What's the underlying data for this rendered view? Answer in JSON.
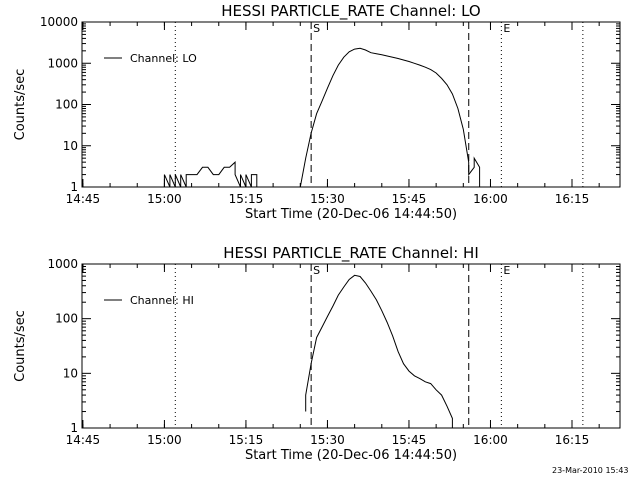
{
  "footer_timestamp": "23-Mar-2010 15:43",
  "chart_data": [
    {
      "type": "line",
      "title": "HESSI PARTICLE_RATE Channel: LO",
      "xlabel": "Start Time (20-Dec-06 14:44:50)",
      "ylabel": "Counts/sec",
      "y_scale": "log",
      "ylim": [
        1,
        10000
      ],
      "y_ticks": [
        "1",
        "10",
        "100",
        "1000",
        "10000"
      ],
      "xlim_minutes_after_start": [
        0,
        99
      ],
      "x_ticks": [
        "14:45",
        "15:00",
        "15:15",
        "15:30",
        "15:45",
        "16:00",
        "16:15"
      ],
      "legend": {
        "placement": "top-left",
        "entries": [
          "Channel: LO"
        ]
      },
      "markers": [
        {
          "label": "S",
          "time": "15:27",
          "style": "dashed"
        },
        {
          "label": "",
          "time": "15:56",
          "style": "dashed"
        },
        {
          "label": "E",
          "time": "16:02",
          "style": "dotted"
        },
        {
          "label": "",
          "time": "15:02",
          "style": "dotted"
        },
        {
          "label": "",
          "time": "16:17",
          "style": "dotted"
        }
      ],
      "series": [
        {
          "name": "Channel: LO",
          "segments": [
            [
              [
                "15:00",
                1
              ],
              [
                "15:00",
                2
              ],
              [
                "15:01",
                1
              ],
              [
                "15:01",
                2
              ],
              [
                "15:02",
                1
              ],
              [
                "15:02",
                2
              ],
              [
                "15:03",
                1
              ],
              [
                "15:03",
                2
              ],
              [
                "15:04",
                1
              ],
              [
                "15:04",
                2
              ],
              [
                "15:05",
                2
              ],
              [
                "15:06",
                2
              ],
              [
                "15:07",
                3
              ],
              [
                "15:08",
                3
              ],
              [
                "15:09",
                2
              ],
              [
                "15:10",
                2
              ],
              [
                "15:11",
                3
              ],
              [
                "15:12",
                3
              ],
              [
                "15:13",
                4
              ],
              [
                "15:13",
                2
              ],
              [
                "15:14",
                1
              ],
              [
                "15:14",
                2
              ],
              [
                "15:15",
                1
              ],
              [
                "15:15",
                2
              ],
              [
                "15:16",
                1
              ],
              [
                "15:16",
                2
              ],
              [
                "15:17",
                2
              ],
              [
                "15:17",
                1
              ]
            ],
            [
              [
                "15:25",
                1
              ],
              [
                "15:26",
                5
              ],
              [
                "15:27",
                20
              ],
              [
                "15:28",
                60
              ],
              [
                "15:29",
                120
              ],
              [
                "15:30",
                250
              ],
              [
                "15:31",
                500
              ],
              [
                "15:32",
                900
              ],
              [
                "15:33",
                1400
              ],
              [
                "15:34",
                1900
              ],
              [
                "15:35",
                2200
              ],
              [
                "15:36",
                2300
              ],
              [
                "15:37",
                2100
              ],
              [
                "15:38",
                1800
              ],
              [
                "15:39",
                1700
              ],
              [
                "15:40",
                1600
              ],
              [
                "15:41",
                1500
              ],
              [
                "15:42",
                1400
              ],
              [
                "15:43",
                1300
              ],
              [
                "15:44",
                1200
              ],
              [
                "15:45",
                1100
              ],
              [
                "15:46",
                1000
              ],
              [
                "15:47",
                900
              ],
              [
                "15:48",
                800
              ],
              [
                "15:49",
                700
              ],
              [
                "15:50",
                580
              ],
              [
                "15:51",
                430
              ],
              [
                "15:52",
                300
              ],
              [
                "15:53",
                180
              ],
              [
                "15:54",
                80
              ],
              [
                "15:55",
                25
              ],
              [
                "15:56",
                4
              ],
              [
                "15:56",
                2
              ],
              [
                "15:57",
                3
              ],
              [
                "15:57",
                5
              ],
              [
                "15:58",
                3
              ],
              [
                "15:58",
                1
              ]
            ]
          ]
        }
      ]
    },
    {
      "type": "line",
      "title": "HESSI PARTICLE_RATE Channel: HI",
      "xlabel": "Start Time (20-Dec-06 14:44:50)",
      "ylabel": "Counts/sec",
      "y_scale": "log",
      "ylim": [
        1,
        1000
      ],
      "y_ticks": [
        "1",
        "10",
        "100",
        "1000"
      ],
      "xlim_minutes_after_start": [
        0,
        99
      ],
      "x_ticks": [
        "14:45",
        "15:00",
        "15:15",
        "15:30",
        "15:45",
        "16:00",
        "16:15"
      ],
      "legend": {
        "placement": "top-left",
        "entries": [
          "Channel: HI"
        ]
      },
      "markers": [
        {
          "label": "S",
          "time": "15:27",
          "style": "dashed"
        },
        {
          "label": "",
          "time": "15:56",
          "style": "dashed"
        },
        {
          "label": "E",
          "time": "16:02",
          "style": "dotted"
        },
        {
          "label": "",
          "time": "15:02",
          "style": "dotted"
        },
        {
          "label": "",
          "time": "16:17",
          "style": "dotted"
        }
      ],
      "series": [
        {
          "name": "Channel: HI",
          "segments": [
            [
              [
                "15:26",
                2
              ],
              [
                "15:26",
                4
              ],
              [
                "15:27",
                15
              ],
              [
                "15:28",
                45
              ],
              [
                "15:29",
                70
              ],
              [
                "15:30",
                110
              ],
              [
                "15:31",
                170
              ],
              [
                "15:32",
                270
              ],
              [
                "15:33",
                380
              ],
              [
                "15:34",
                520
              ],
              [
                "15:35",
                620
              ],
              [
                "15:36",
                590
              ],
              [
                "15:37",
                450
              ],
              [
                "15:38",
                320
              ],
              [
                "15:39",
                220
              ],
              [
                "15:40",
                140
              ],
              [
                "15:41",
                85
              ],
              [
                "15:42",
                48
              ],
              [
                "15:43",
                25
              ],
              [
                "15:44",
                15
              ],
              [
                "15:45",
                11
              ],
              [
                "15:46",
                9
              ],
              [
                "15:47",
                8
              ],
              [
                "15:48",
                7
              ],
              [
                "15:49",
                6.5
              ],
              [
                "15:50",
                5
              ],
              [
                "15:51",
                4
              ],
              [
                "15:52",
                2.5
              ],
              [
                "15:53",
                1.5
              ],
              [
                "15:53",
                1
              ]
            ]
          ]
        }
      ]
    }
  ]
}
